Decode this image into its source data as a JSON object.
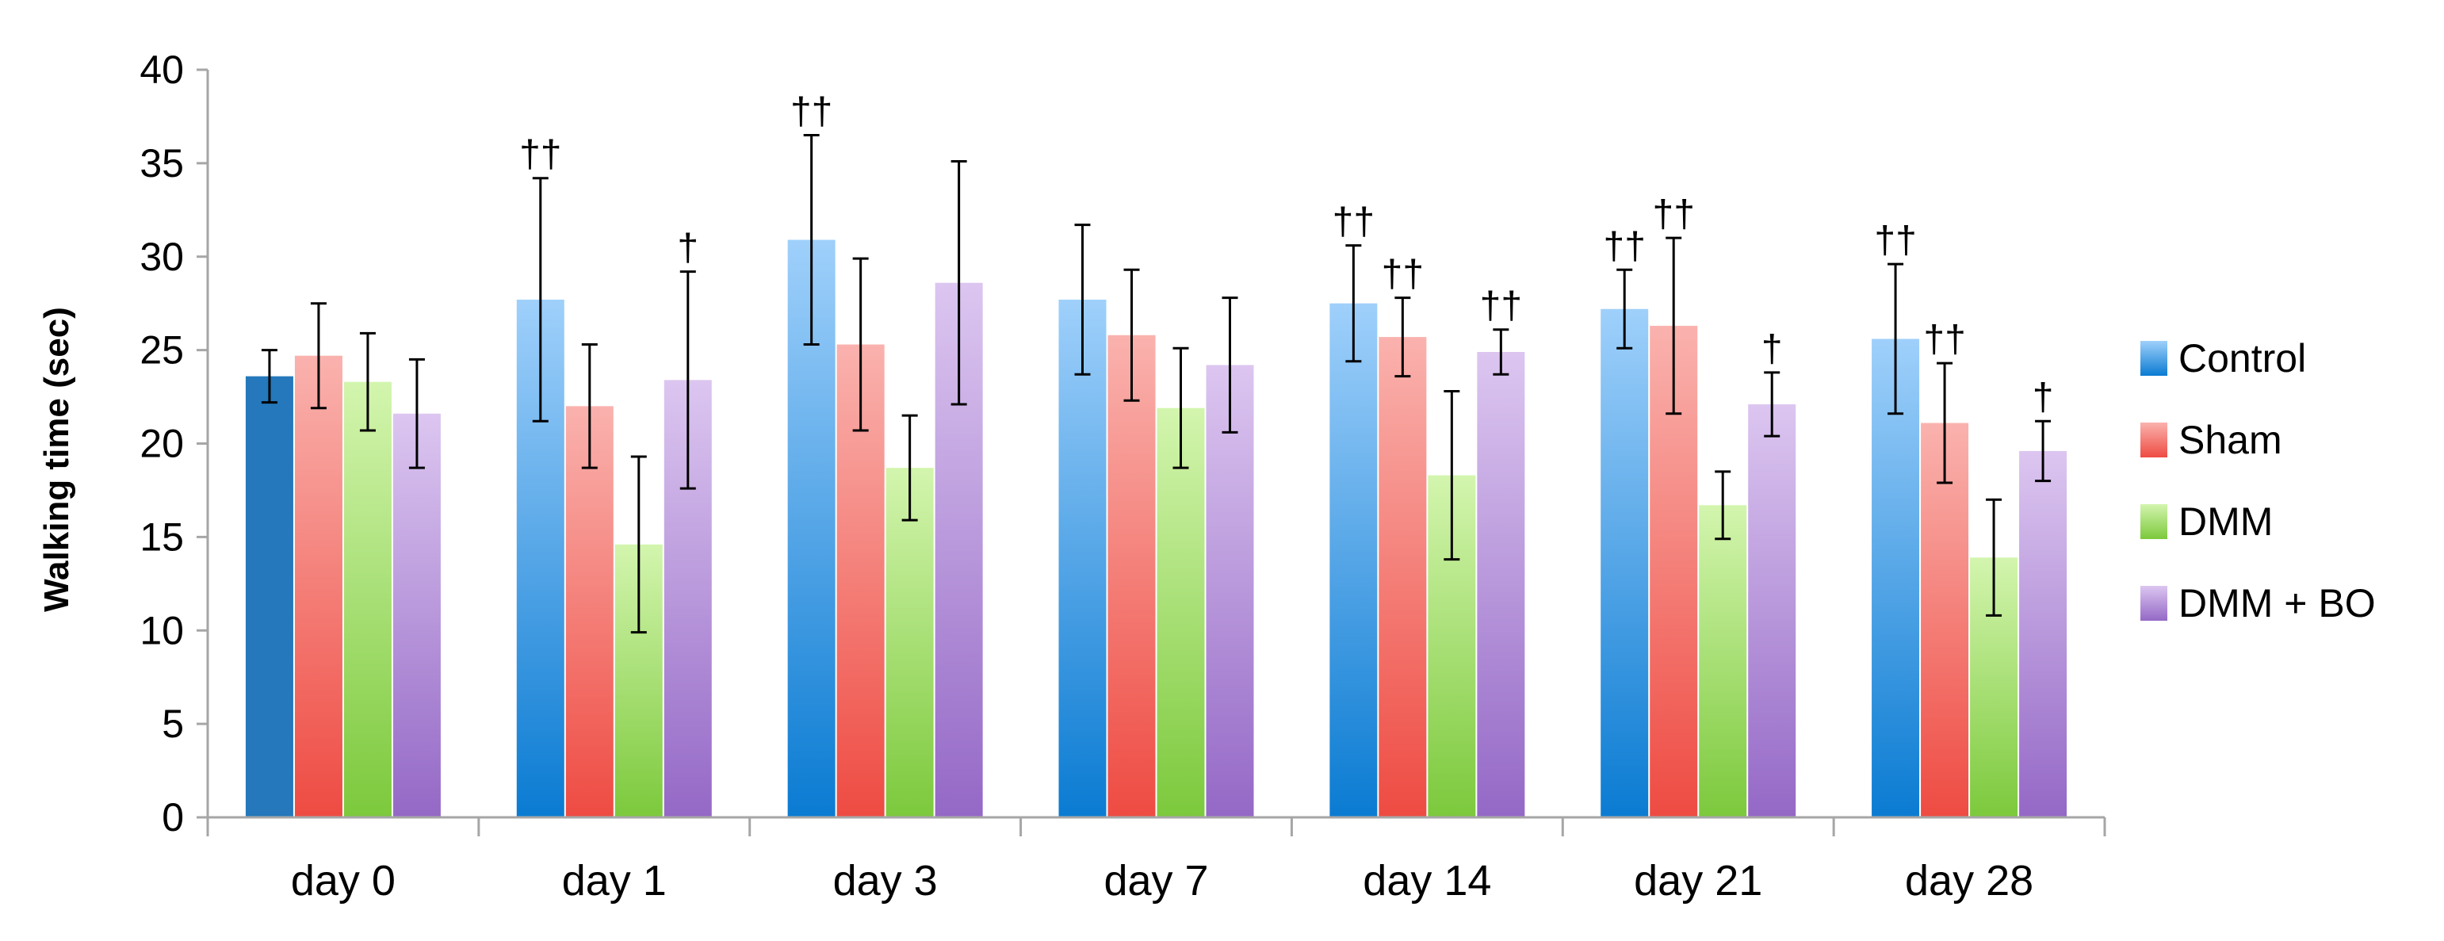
{
  "chart_data": {
    "type": "bar",
    "title": "",
    "xlabel": "",
    "ylabel": "Walking time (sec)",
    "ylim": [
      0,
      40
    ],
    "yticks": [
      0,
      5,
      10,
      15,
      20,
      25,
      30,
      35,
      40
    ],
    "grid": false,
    "legend_position": "right",
    "categories": [
      "day 0",
      "day 1",
      "day 3",
      "day 7",
      "day 14",
      "day 21",
      "day 28"
    ],
    "series": [
      {
        "name": "Control",
        "color": "#3d9be6",
        "color_light": "#9fd0fb",
        "color_dark": "#0a7bd2",
        "values": [
          23.6,
          27.7,
          30.9,
          27.7,
          27.5,
          27.2,
          25.6
        ],
        "errors": [
          1.4,
          6.5,
          5.6,
          4.0,
          3.1,
          2.1,
          4.0
        ],
        "markers": [
          "",
          "††",
          "††",
          "",
          "††",
          "††",
          "††"
        ]
      },
      {
        "name": "Sham",
        "color": "#f2665f",
        "color_light": "#fab2ae",
        "color_dark": "#ee4b42",
        "values": [
          24.7,
          22.0,
          25.3,
          25.8,
          25.7,
          26.3,
          21.1
        ],
        "errors": [
          2.8,
          3.3,
          4.6,
          3.5,
          2.1,
          4.7,
          3.2
        ],
        "markers": [
          "",
          "",
          "",
          "",
          "††",
          "††",
          "††"
        ]
      },
      {
        "name": "DMM",
        "color": "#9fdd6a",
        "color_light": "#d3f5ae",
        "color_dark": "#7cc93c",
        "values": [
          23.3,
          14.6,
          18.7,
          21.9,
          18.3,
          16.7,
          13.9
        ],
        "errors": [
          2.6,
          4.7,
          2.8,
          3.2,
          4.5,
          1.8,
          3.1
        ],
        "markers": [
          "",
          "",
          "",
          "",
          "",
          "",
          ""
        ]
      },
      {
        "name": "DMM + BO",
        "color": "#b38fd6",
        "color_light": "#dcc6f0",
        "color_dark": "#9468c6",
        "values": [
          21.6,
          23.4,
          28.6,
          24.2,
          24.9,
          22.1,
          19.6
        ],
        "errors": [
          2.9,
          5.8,
          6.5,
          3.6,
          1.2,
          1.7,
          1.6
        ],
        "markers": [
          "",
          "†",
          "",
          "",
          "††",
          "†",
          "†"
        ]
      }
    ],
    "day0_control_color": "#2478bb"
  }
}
